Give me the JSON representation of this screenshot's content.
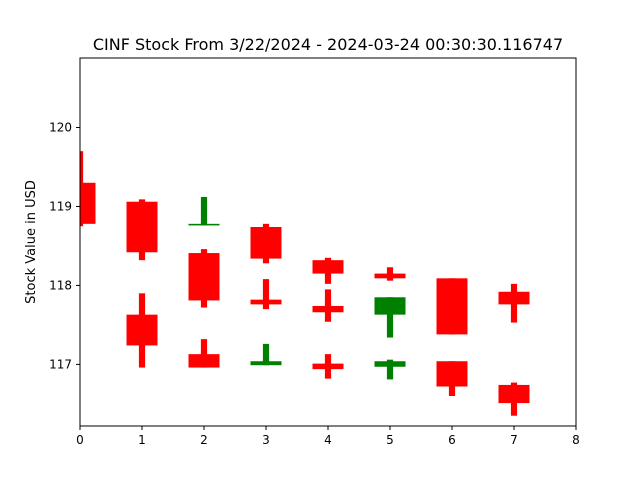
{
  "chart_data": {
    "type": "candlestick",
    "title": "CINF Stock From 3/22/2024 - 2024-03-24 00:30:30.116747",
    "xlabel": "",
    "ylabel": "Stock Value in USD",
    "xlim": [
      0,
      8
    ],
    "ylim": [
      116.22,
      120.88
    ],
    "x_ticks": [
      "0",
      "1",
      "2",
      "3",
      "4",
      "5",
      "6",
      "7",
      "8"
    ],
    "y_ticks": [
      "117",
      "118",
      "119",
      "120"
    ],
    "grid": false,
    "legend": "none",
    "colors": {
      "up": "#008000",
      "down": "#ff0000"
    },
    "candles": [
      {
        "x": 0,
        "open": 119.3,
        "close": 118.78,
        "high": 119.7,
        "low": 118.75,
        "direction": "down"
      },
      {
        "x": 1,
        "open": 119.06,
        "close": 118.42,
        "high": 119.09,
        "low": 118.32,
        "direction": "down"
      },
      {
        "x": 1,
        "open": 117.63,
        "close": 117.24,
        "high": 117.9,
        "low": 116.96,
        "direction": "down"
      },
      {
        "x": 2,
        "open": 118.41,
        "close": 117.81,
        "high": 118.46,
        "low": 117.72,
        "direction": "down"
      },
      {
        "x": 2,
        "open": 118.76,
        "close": 118.78,
        "high": 119.12,
        "low": 118.76,
        "direction": "up"
      },
      {
        "x": 2,
        "open": 117.13,
        "close": 116.96,
        "high": 117.32,
        "low": 116.96,
        "direction": "down"
      },
      {
        "x": 3,
        "open": 118.74,
        "close": 118.34,
        "high": 118.78,
        "low": 118.28,
        "direction": "down"
      },
      {
        "x": 3,
        "open": 117.82,
        "close": 117.76,
        "high": 118.08,
        "low": 117.7,
        "direction": "down"
      },
      {
        "x": 3,
        "open": 116.99,
        "close": 117.04,
        "high": 117.26,
        "low": 116.99,
        "direction": "up"
      },
      {
        "x": 4,
        "open": 118.32,
        "close": 118.15,
        "high": 118.35,
        "low": 118.02,
        "direction": "down"
      },
      {
        "x": 4,
        "open": 117.74,
        "close": 117.66,
        "high": 117.95,
        "low": 117.54,
        "direction": "down"
      },
      {
        "x": 4,
        "open": 117.01,
        "close": 116.94,
        "high": 117.13,
        "low": 116.82,
        "direction": "down"
      },
      {
        "x": 5,
        "open": 118.15,
        "close": 118.09,
        "high": 118.23,
        "low": 118.06,
        "direction": "down"
      },
      {
        "x": 5,
        "open": 117.63,
        "close": 117.85,
        "high": 117.85,
        "low": 117.34,
        "direction": "up"
      },
      {
        "x": 5,
        "open": 116.97,
        "close": 117.04,
        "high": 117.06,
        "low": 116.81,
        "direction": "up"
      },
      {
        "x": 6,
        "open": 118.09,
        "close": 117.38,
        "high": 118.09,
        "low": 117.38,
        "direction": "down"
      },
      {
        "x": 6,
        "open": 117.04,
        "close": 116.72,
        "high": 117.04,
        "low": 116.6,
        "direction": "down"
      },
      {
        "x": 7,
        "open": 117.92,
        "close": 117.76,
        "high": 118.02,
        "low": 117.53,
        "direction": "down"
      },
      {
        "x": 7,
        "open": 116.74,
        "close": 116.51,
        "high": 116.77,
        "low": 116.35,
        "direction": "down"
      }
    ]
  }
}
